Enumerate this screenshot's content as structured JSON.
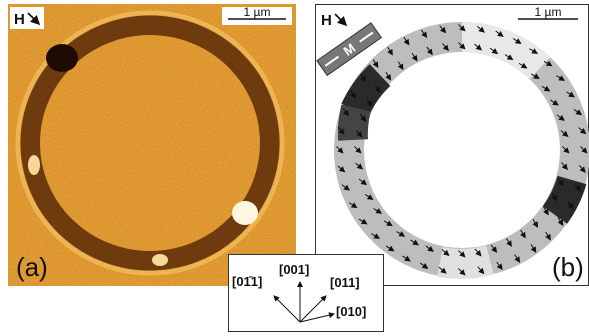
{
  "panels": [
    {
      "label": "(a)",
      "field_label": "H",
      "scale_bar": "1 µm"
    },
    {
      "label": "(b)",
      "field_label": "H",
      "scale_bar": "1 µm",
      "magnetization_label": "M"
    }
  ],
  "axes_legend": {
    "labels": [
      "[01̄1]",
      "[001]",
      "[011]",
      "[010]"
    ]
  }
}
